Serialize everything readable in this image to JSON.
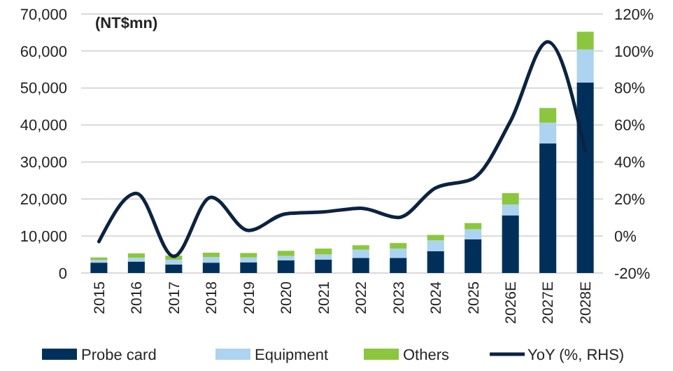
{
  "chart_data": {
    "type": "bar",
    "stacked": true,
    "categories": [
      "2015",
      "2016",
      "2017",
      "2018",
      "2019",
      "2020",
      "2021",
      "2022",
      "2023",
      "2024",
      "2025",
      "2026E",
      "2027E",
      "2028E"
    ],
    "annotations": [
      "(NT$mn)"
    ],
    "series": [
      {
        "name": "Probe card",
        "color": "#00305a",
        "values": [
          2800,
          3100,
          2300,
          2800,
          2900,
          3400,
          3600,
          4100,
          4100,
          5900,
          9100,
          15600,
          35000,
          51500
        ]
      },
      {
        "name": "Equipment",
        "color": "#acd3ef",
        "values": [
          700,
          1000,
          1300,
          1500,
          1300,
          1200,
          1400,
          2200,
          2500,
          2900,
          2700,
          2900,
          5600,
          8900
        ]
      },
      {
        "name": "Others",
        "color": "#8cc63f",
        "values": [
          700,
          1200,
          1100,
          1200,
          1200,
          1400,
          1600,
          1200,
          1500,
          1500,
          1700,
          3100,
          4000,
          4800
        ]
      },
      {
        "name": "YoY (%, RHS)",
        "type": "line",
        "axis": "y2",
        "color": "#0c2340",
        "values": [
          -3,
          23,
          -11,
          21,
          3,
          12,
          13,
          15,
          10,
          26,
          31,
          62,
          105,
          46
        ]
      }
    ],
    "ylim": [
      0,
      70000
    ],
    "yticks": [
      {
        "value": 0,
        "label": "0"
      },
      {
        "value": 10000,
        "label": "10,000"
      },
      {
        "value": 20000,
        "label": "20,000"
      },
      {
        "value": 30000,
        "label": "30,000"
      },
      {
        "value": 40000,
        "label": "40,000"
      },
      {
        "value": 50000,
        "label": "50,000"
      },
      {
        "value": 60000,
        "label": "60,000"
      },
      {
        "value": 70000,
        "label": "70,000"
      }
    ],
    "y2lim": [
      -20,
      120
    ],
    "y2ticks": [
      {
        "value": -20,
        "label": "-20%"
      },
      {
        "value": 0,
        "label": "0%"
      },
      {
        "value": 20,
        "label": "20%"
      },
      {
        "value": 40,
        "label": "40%"
      },
      {
        "value": 60,
        "label": "60%"
      },
      {
        "value": 80,
        "label": "80%"
      },
      {
        "value": 100,
        "label": "100%"
      },
      {
        "value": 120,
        "label": "120%"
      }
    ],
    "grid": "y",
    "legend": "bottom",
    "marker": "none",
    "line_style": "solid"
  }
}
